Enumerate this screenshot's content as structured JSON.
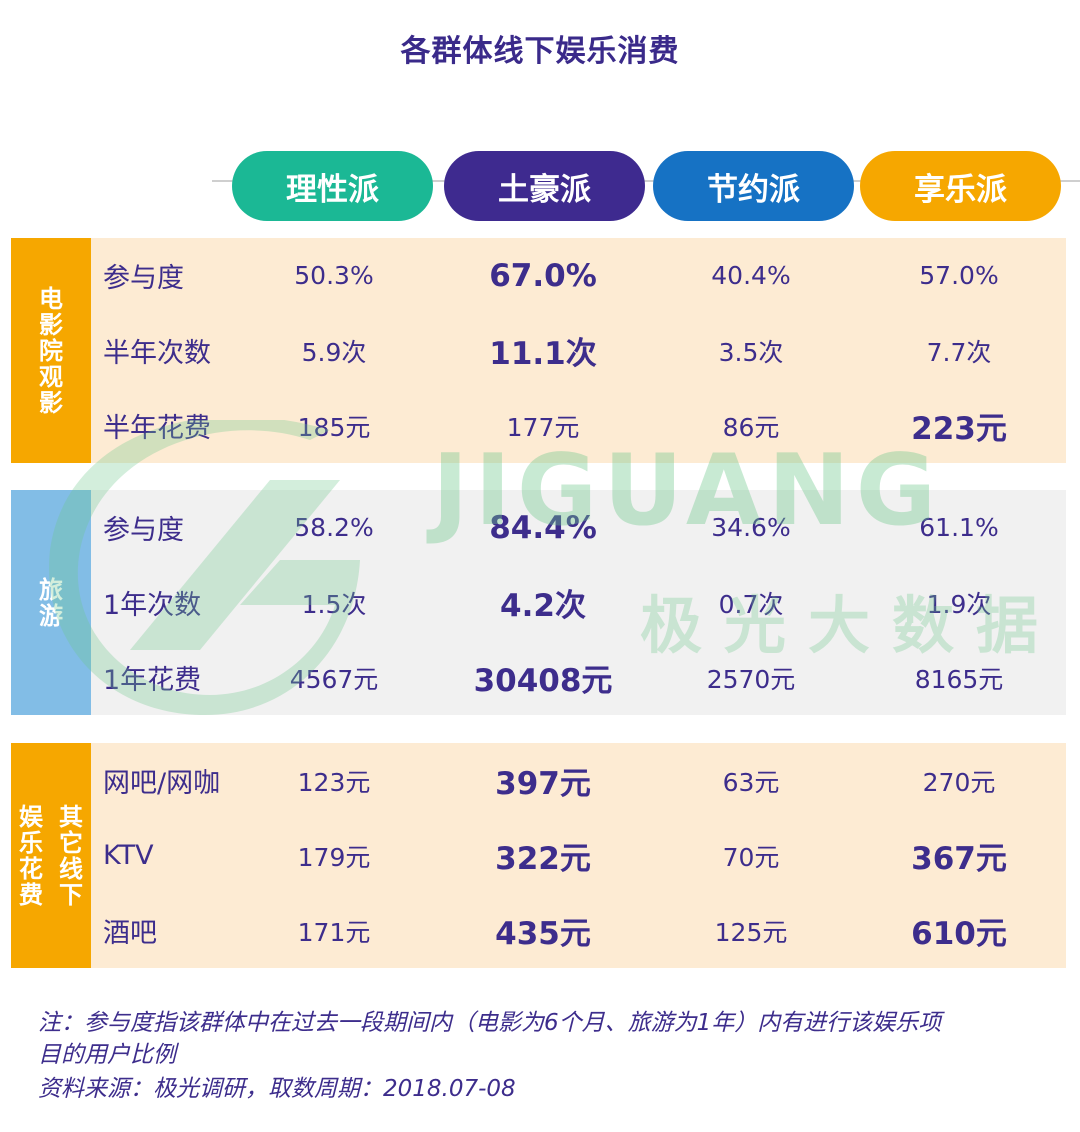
{
  "title": "各群体线下娱乐消费",
  "groups": [
    {
      "label": "理性派",
      "color": "#1bb895"
    },
    {
      "label": "土豪派",
      "color": "#3e2a8f"
    },
    {
      "label": "节约派",
      "color": "#1672c4"
    },
    {
      "label": "享乐派",
      "color": "#f6a700"
    }
  ],
  "watermark": {
    "text": "JIGUANG",
    "cn": "极光大数据"
  },
  "sections": [
    {
      "label_cols": [
        [
          "电",
          "影",
          "院",
          "观",
          "影"
        ]
      ],
      "label_color": "#f6a700",
      "bg_color": "#fdebd3",
      "rows": [
        {
          "label": "参与度",
          "values": [
            "50.3%",
            "67.0%",
            "40.4%",
            "57.0%"
          ],
          "bold": [
            false,
            true,
            false,
            false
          ]
        },
        {
          "label": "半年次数",
          "values": [
            "5.9次",
            "11.1次",
            "3.5次",
            "7.7次"
          ],
          "bold": [
            false,
            true,
            false,
            false
          ]
        },
        {
          "label": "半年花费",
          "values": [
            "185元",
            "177元",
            "86元",
            "223元"
          ],
          "bold": [
            false,
            false,
            false,
            true
          ]
        }
      ]
    },
    {
      "label_cols": [
        [
          "旅",
          "游"
        ]
      ],
      "label_color": "#82bde6",
      "bg_color": "#f1f1f1",
      "rows": [
        {
          "label": "参与度",
          "values": [
            "58.2%",
            "84.4%",
            "34.6%",
            "61.1%"
          ],
          "bold": [
            false,
            true,
            false,
            false
          ]
        },
        {
          "label": "1年次数",
          "values": [
            "1.5次",
            "4.2次",
            "0.7次",
            "1.9次"
          ],
          "bold": [
            false,
            true,
            false,
            false
          ]
        },
        {
          "label": "1年花费",
          "values": [
            "4567元",
            "30408元",
            "2570元",
            "8165元"
          ],
          "bold": [
            false,
            true,
            false,
            false
          ]
        }
      ]
    },
    {
      "label_cols": [
        [
          "娱",
          "乐",
          "花",
          "费"
        ],
        [
          "其",
          "它",
          "线",
          "下"
        ]
      ],
      "label_color": "#f6a700",
      "bg_color": "#fdebd3",
      "rows": [
        {
          "label": "网吧/网咖",
          "values": [
            "123元",
            "397元",
            "63元",
            "270元"
          ],
          "bold": [
            false,
            true,
            false,
            false
          ]
        },
        {
          "label": "KTV",
          "values": [
            "179元",
            "322元",
            "70元",
            "367元"
          ],
          "bold": [
            false,
            true,
            false,
            true
          ]
        },
        {
          "label": "酒吧",
          "values": [
            "171元",
            "435元",
            "125元",
            "610元"
          ],
          "bold": [
            false,
            true,
            false,
            true
          ]
        }
      ]
    }
  ],
  "notes": [
    "注：参与度指该群体中在过去一段期间内（电影为6个月、旅游为1年）内有进行该娱乐项",
    "目的用户比例",
    "资料来源：极光调研，取数周期：2018.07-08"
  ],
  "chart_data": {
    "type": "table",
    "title": "各群体线下娱乐消费",
    "columns": [
      "理性派",
      "土豪派",
      "节约派",
      "享乐派"
    ],
    "rows": [
      {
        "category": "电影院观影",
        "metric": "参与度",
        "values": [
          "50.3%",
          "67.0%",
          "40.4%",
          "57.0%"
        ]
      },
      {
        "category": "电影院观影",
        "metric": "半年次数",
        "values": [
          "5.9次",
          "11.1次",
          "3.5次",
          "7.7次"
        ]
      },
      {
        "category": "电影院观影",
        "metric": "半年花费",
        "values": [
          "185元",
          "177元",
          "86元",
          "223元"
        ]
      },
      {
        "category": "旅游",
        "metric": "参与度",
        "values": [
          "58.2%",
          "84.4%",
          "34.6%",
          "61.1%"
        ]
      },
      {
        "category": "旅游",
        "metric": "1年次数",
        "values": [
          "1.5次",
          "4.2次",
          "0.7次",
          "1.9次"
        ]
      },
      {
        "category": "旅游",
        "metric": "1年花费",
        "values": [
          "4567元",
          "30408元",
          "2570元",
          "8165元"
        ]
      },
      {
        "category": "其它线下娱乐花费",
        "metric": "网吧/网咖",
        "values": [
          "123元",
          "397元",
          "63元",
          "270元"
        ]
      },
      {
        "category": "其它线下娱乐花费",
        "metric": "KTV",
        "values": [
          "179元",
          "322元",
          "70元",
          "367元"
        ]
      },
      {
        "category": "其它线下娱乐花费",
        "metric": "酒吧",
        "values": [
          "171元",
          "435元",
          "125元",
          "610元"
        ]
      }
    ]
  }
}
